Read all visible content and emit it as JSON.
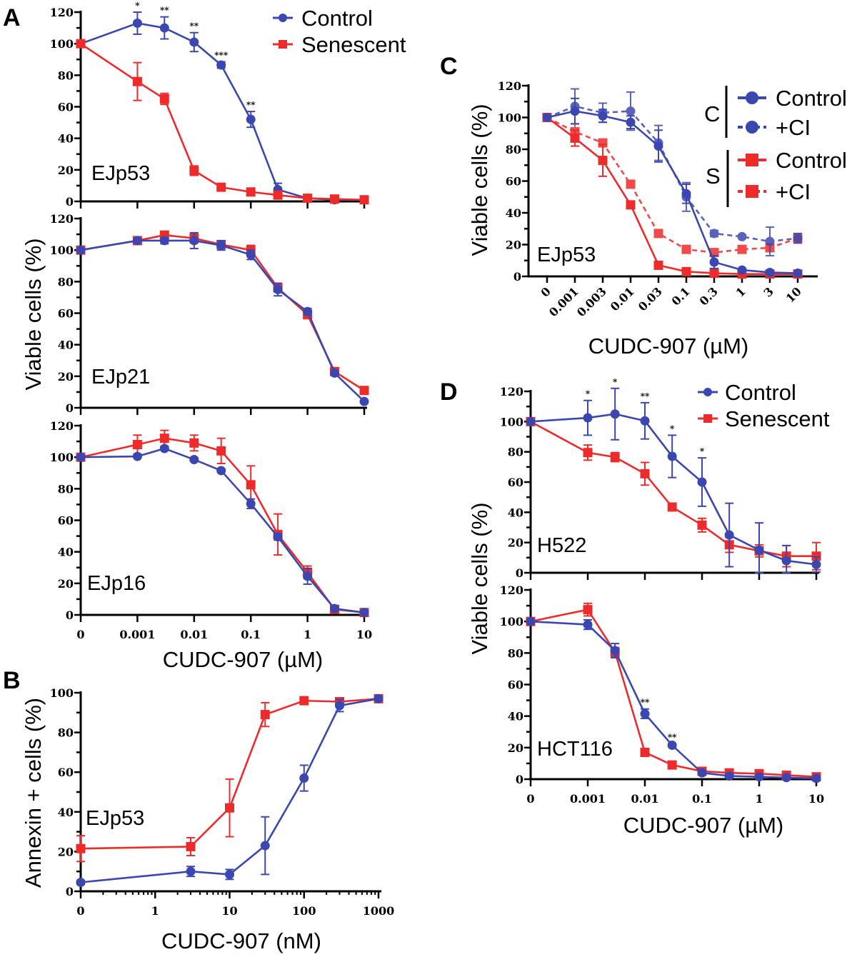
{
  "colors": {
    "control": "#3b47b0",
    "senescent": "#ee2b2b"
  },
  "panel_letters": {
    "A": "A",
    "B": "B",
    "C": "C",
    "D": "D"
  },
  "legends": {
    "A": [
      {
        "label": "Control",
        "series": "control"
      },
      {
        "label": "Senescent",
        "series": "senescent"
      }
    ],
    "C": {
      "group_c": "C",
      "group_s": "S",
      "items": [
        {
          "label": "Control",
          "series": "control",
          "dashed": false
        },
        {
          "label": "+CI",
          "series": "control",
          "dashed": true
        },
        {
          "label": "Control",
          "series": "senescent",
          "dashed": false
        },
        {
          "label": "+CI",
          "series": "senescent",
          "dashed": true
        }
      ]
    },
    "D": [
      {
        "label": "Control",
        "series": "control"
      },
      {
        "label": "Senescent",
        "series": "senescent"
      }
    ]
  },
  "chart_data": [
    {
      "id": "A1",
      "panel": "A",
      "type": "line",
      "cell_line": "EJp53",
      "ylabel": "Viable cells (%)",
      "xlabel": "",
      "ylim": [
        0,
        120
      ],
      "yticks": [
        "0",
        "20",
        "40",
        "60",
        "80",
        "100",
        "120"
      ],
      "xscale": "log (0 at left)",
      "xticks": [],
      "x": [
        0,
        0.001,
        0.003,
        0.01,
        0.03,
        0.1,
        0.3,
        1,
        3,
        10
      ],
      "series": [
        {
          "name": "Control",
          "key": "control",
          "marker": "circle",
          "values": [
            100,
            113,
            110,
            101,
            86.5,
            52,
            7.5,
            2,
            1,
            1
          ],
          "errors": [
            0,
            7,
            7,
            6,
            2,
            5,
            4,
            1,
            0.5,
            0.5
          ]
        },
        {
          "name": "Senescent",
          "key": "senescent",
          "marker": "square",
          "values": [
            100,
            76,
            65,
            19.5,
            9,
            6,
            4,
            2,
            1.5,
            1
          ],
          "errors": [
            0,
            12,
            3.5,
            3,
            1.5,
            1,
            1,
            1,
            1,
            1
          ]
        }
      ],
      "annotations": [
        {
          "x": 0.001,
          "text": "*"
        },
        {
          "x": 0.003,
          "text": "**"
        },
        {
          "x": 0.01,
          "text": "**"
        },
        {
          "x": 0.03,
          "text": "***"
        },
        {
          "x": 0.1,
          "text": "**"
        }
      ]
    },
    {
      "id": "A2",
      "panel": "A",
      "type": "line",
      "cell_line": "EJp21",
      "ylim": [
        0,
        120
      ],
      "yticks": [
        "0",
        "20",
        "40",
        "60",
        "80",
        "100",
        "120"
      ],
      "xticks": [],
      "x": [
        0,
        0.001,
        0.003,
        0.01,
        0.03,
        0.1,
        0.3,
        1,
        3,
        10
      ],
      "series": [
        {
          "name": "Senescent",
          "key": "senescent",
          "marker": "square",
          "values": [
            100,
            106,
            109.5,
            107.5,
            103.5,
            100,
            76,
            59,
            23,
            11
          ],
          "errors": [
            0,
            1,
            1.5,
            3,
            2,
            3,
            2,
            2,
            1,
            1
          ]
        },
        {
          "name": "Control",
          "key": "control",
          "marker": "circle",
          "values": [
            100,
            106,
            106,
            106,
            103,
            97,
            75,
            61,
            22,
            4
          ],
          "errors": [
            0,
            1,
            2,
            5,
            3,
            3,
            4,
            2,
            1,
            0.5
          ]
        }
      ],
      "annotations": []
    },
    {
      "id": "A3",
      "panel": "A",
      "type": "line",
      "cell_line": "EJp16",
      "xlabel": "CUDC-907  (µM)",
      "ylim": [
        0,
        120
      ],
      "yticks": [
        "0",
        "20",
        "40",
        "60",
        "80",
        "100",
        "120"
      ],
      "xticks": [
        "0",
        "0.001",
        "0.01",
        "0.1",
        "1",
        "10"
      ],
      "x": [
        0,
        0.001,
        0.003,
        0.01,
        0.03,
        0.1,
        0.3,
        1,
        3,
        10
      ],
      "series": [
        {
          "name": "Senescent",
          "key": "senescent",
          "marker": "square",
          "values": [
            100,
            108,
            112,
            109,
            104,
            82.5,
            51,
            27,
            3.5,
            1.5
          ],
          "errors": [
            0,
            6,
            5,
            5,
            8,
            12,
            13,
            4,
            1,
            0.5
          ]
        },
        {
          "name": "Control",
          "key": "control",
          "marker": "circle",
          "values": [
            100,
            100.5,
            105.5,
            98.5,
            91.5,
            70.5,
            49.5,
            24.5,
            4,
            1.5
          ],
          "errors": [
            0,
            0,
            1,
            1,
            1,
            3,
            2,
            5,
            1,
            0.5
          ]
        }
      ],
      "annotations": []
    },
    {
      "id": "B",
      "panel": "B",
      "type": "line",
      "cell_line": "EJp53",
      "ylabel": "Annexin + cells (%)",
      "xlabel": "CUDC-907 (nM)",
      "ylim": [
        0,
        100
      ],
      "yticks": [
        "0",
        "20",
        "40",
        "60",
        "80",
        "100"
      ],
      "xticks": [
        "0",
        "1",
        "10",
        "100",
        "1000"
      ],
      "x": [
        0,
        3,
        10,
        30,
        100,
        300,
        1000
      ],
      "series": [
        {
          "name": "Senescent",
          "key": "senescent",
          "marker": "square",
          "values": [
            21.5,
            22.5,
            42,
            89,
            96,
            95.5,
            97
          ],
          "errors": [
            6.5,
            4.5,
            14.5,
            6,
            1,
            1,
            1
          ]
        },
        {
          "name": "Control",
          "key": "control",
          "marker": "circle",
          "values": [
            4.5,
            10,
            8.5,
            23,
            57,
            93.5,
            97
          ],
          "errors": [
            1,
            2.5,
            2.5,
            14.5,
            6.5,
            3,
            1
          ]
        }
      ],
      "annotations": []
    },
    {
      "id": "C",
      "panel": "C",
      "type": "line",
      "cell_line": "EJp53",
      "ylabel": "Viable cells (%)",
      "xlabel": "CUDC-907  (µM)",
      "ylim": [
        0,
        120
      ],
      "yticks": [
        "0",
        "20",
        "40",
        "60",
        "80",
        "100",
        "120"
      ],
      "xticks": [
        "0",
        "0.001",
        "0.003",
        "0.01",
        "0.03",
        "0.1",
        "0.3",
        "1",
        "3",
        "10"
      ],
      "x": [
        0,
        0.001,
        0.003,
        0.01,
        0.03,
        0.1,
        0.3,
        1,
        3,
        10
      ],
      "series": [
        {
          "name": "S +CI",
          "key": "senescent",
          "marker": "square",
          "dashed": true,
          "values": [
            100,
            91,
            84,
            58,
            27,
            17,
            15,
            17,
            18,
            24
          ],
          "errors": [
            0,
            5,
            1,
            2,
            1,
            1,
            1,
            1,
            1,
            3
          ]
        },
        {
          "name": "C +CI",
          "key": "control",
          "marker": "circle",
          "dashed": true,
          "values": [
            100,
            107,
            103,
            104,
            84,
            50,
            27,
            25,
            22,
            24
          ],
          "errors": [
            0,
            11,
            6,
            12,
            11,
            9,
            2,
            1,
            9,
            3
          ]
        },
        {
          "name": "S Control",
          "key": "senescent",
          "marker": "square",
          "dashed": false,
          "values": [
            100,
            87,
            73,
            45,
            7,
            3,
            2,
            1.5,
            1.5,
            1.5
          ],
          "errors": [
            0,
            5,
            10,
            1,
            1,
            1,
            1,
            1,
            1,
            1
          ]
        },
        {
          "name": "C Control",
          "key": "control",
          "marker": "circle",
          "dashed": false,
          "values": [
            100,
            104,
            101,
            97,
            82,
            52,
            9,
            4,
            2.5,
            2
          ],
          "errors": [
            0,
            8,
            4,
            4,
            10,
            6,
            4,
            0.5,
            0.5,
            0.5
          ]
        }
      ],
      "annotations": []
    },
    {
      "id": "D1",
      "panel": "D",
      "type": "line",
      "cell_line": "H522",
      "ylabel": "Viable cells (%)",
      "ylim": [
        0,
        120
      ],
      "yticks": [
        "0",
        "20",
        "40",
        "60",
        "80",
        "100",
        "120"
      ],
      "xticks": [],
      "x": [
        0,
        0.001,
        0.003,
        0.01,
        0.03,
        0.1,
        0.3,
        1,
        3,
        10
      ],
      "series": [
        {
          "name": "Senescent",
          "key": "senescent",
          "marker": "square",
          "values": [
            100,
            79.5,
            76.5,
            65.5,
            43.5,
            31.5,
            18.5,
            14.5,
            11,
            11
          ],
          "errors": [
            0,
            5,
            3,
            7.5,
            1,
            4.5,
            5,
            4,
            7,
            9
          ]
        },
        {
          "name": "Control",
          "key": "control",
          "marker": "circle",
          "values": [
            100,
            102.5,
            105,
            100.5,
            77,
            60,
            25,
            15,
            8,
            5.5
          ],
          "errors": [
            0,
            11.5,
            17,
            12,
            14,
            16,
            21,
            18,
            10,
            5
          ]
        }
      ],
      "annotations": [
        {
          "x": 0.001,
          "text": "*"
        },
        {
          "x": 0.003,
          "text": "*"
        },
        {
          "x": 0.01,
          "text": "**"
        },
        {
          "x": 0.03,
          "text": "*"
        },
        {
          "x": 0.1,
          "text": "*"
        }
      ]
    },
    {
      "id": "D2",
      "panel": "D",
      "type": "line",
      "cell_line": "HCT116",
      "xlabel": "CUDC-907  (µM)",
      "ylim": [
        0,
        120
      ],
      "yticks": [
        "0",
        "20",
        "40",
        "60",
        "80",
        "100",
        "120"
      ],
      "xticks": [
        "0",
        "0.001",
        "0.01",
        "0.1",
        "1",
        "10"
      ],
      "x": [
        0,
        0.001,
        0.003,
        0.01,
        0.03,
        0.1,
        0.3,
        1,
        3,
        10
      ],
      "series": [
        {
          "name": "Senescent",
          "key": "senescent",
          "marker": "square",
          "values": [
            100,
            107.5,
            80.5,
            17,
            9,
            5,
            4,
            3.5,
            2.5,
            1.5
          ],
          "errors": [
            0,
            4,
            3,
            1,
            1,
            1,
            1,
            1,
            1,
            1
          ]
        },
        {
          "name": "Control",
          "key": "control",
          "marker": "circle",
          "values": [
            100,
            98,
            81.5,
            41.5,
            21.5,
            4,
            2,
            1.5,
            1,
            0.5
          ],
          "errors": [
            0,
            3,
            4.5,
            3,
            1,
            1,
            0.5,
            0.5,
            0.5,
            0.5
          ]
        }
      ],
      "annotations": [
        {
          "x": 0.01,
          "text": "**"
        },
        {
          "x": 0.03,
          "text": "**"
        }
      ]
    }
  ]
}
